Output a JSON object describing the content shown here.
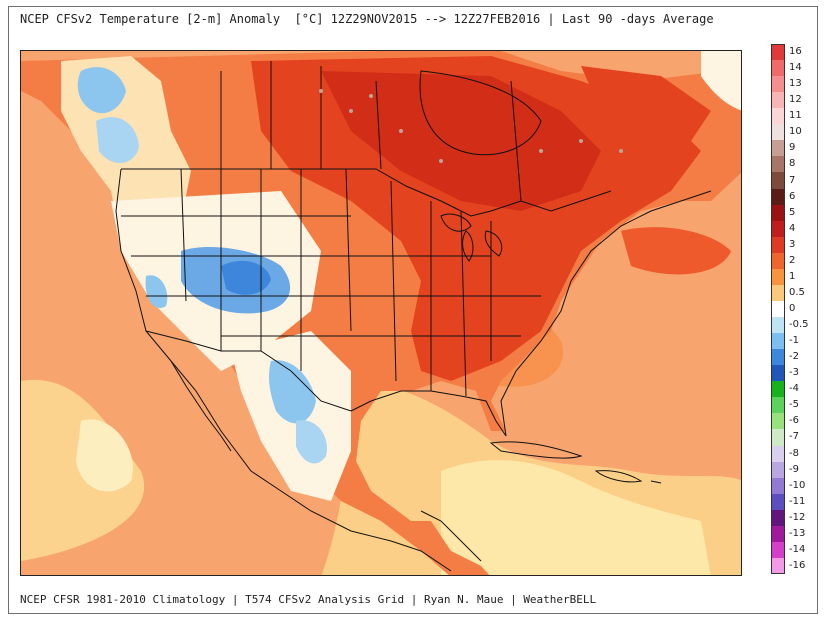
{
  "header": {
    "title": "NCEP CFSv2 Temperature [2-m] Anomaly  [°C] 12Z29NOV2015 --> 12Z27FEB2016 | Last 90 -days Average"
  },
  "footer": {
    "credit": "NCEP CFSR 1981-2010 Climatology | T574 CFSv2 Analysis Grid | Ryan N. Maue | WeatherBELL"
  },
  "legend": {
    "labels": [
      "16",
      "14",
      "13",
      "12",
      "11",
      "10",
      "9",
      "8",
      "7",
      "6",
      "5",
      "4",
      "3",
      "2",
      "1",
      "0.5",
      "0",
      "-0.5",
      "-1",
      "-2",
      "-3",
      "-4",
      "-5",
      "-6",
      "-7",
      "-8",
      "-9",
      "-10",
      "-11",
      "-12",
      "-13",
      "-14",
      "-16"
    ],
    "colors": [
      "#e03a3a",
      "#f06a6a",
      "#f58f8f",
      "#f9b4b4",
      "#fbd6d6",
      "#eee1dd",
      "#c79e94",
      "#a87668",
      "#7e4a3c",
      "#5a1c14",
      "#9a1212",
      "#c01e1e",
      "#df3a22",
      "#f0652c",
      "#f7943e",
      "#fcc87a",
      "#ffffff",
      "#bee3f5",
      "#7cbff0",
      "#3c88dd",
      "#1f58b8",
      "#17b31c",
      "#5bd25a",
      "#98e27e",
      "#cde9c5",
      "#d9d0ee",
      "#b8a7e0",
      "#9179d4",
      "#5c4ec1",
      "#63157e",
      "#a11a9e",
      "#d33fc8",
      "#f29ae8"
    ]
  },
  "map": {
    "region": "North America",
    "dominant_anomaly": "warm"
  }
}
